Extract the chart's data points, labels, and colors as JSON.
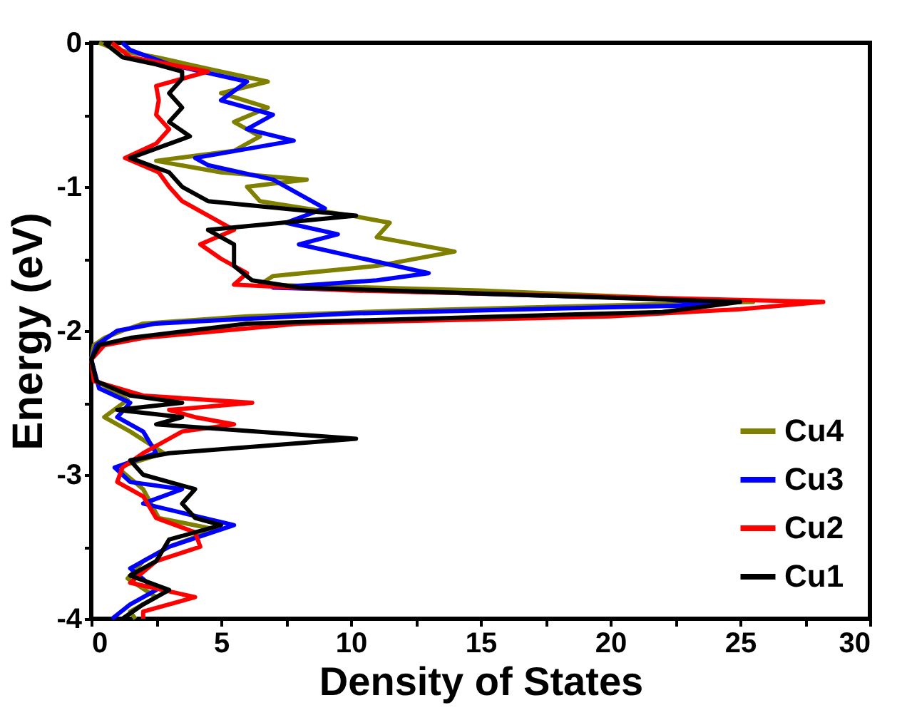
{
  "chart_data": {
    "type": "line",
    "xlabel": "Density of States",
    "ylabel": "Energy (eV)",
    "xlim": [
      0,
      30
    ],
    "ylim": [
      -4,
      0
    ],
    "xticks": [
      0,
      {
        "value": 2.5,
        "label": null
      },
      5,
      {
        "value": 7.5,
        "label": null
      },
      10,
      {
        "value": 12.5,
        "label": null
      },
      15,
      {
        "value": 17.5,
        "label": null
      },
      20,
      {
        "value": 22.5,
        "label": null
      },
      25,
      {
        "value": 27.5,
        "label": null
      },
      30
    ],
    "yticks": [
      -4,
      {
        "value": -3.5,
        "label": null
      },
      -3,
      {
        "value": -2.5,
        "label": null
      },
      -2,
      {
        "value": -1.5,
        "label": null
      },
      -1,
      {
        "value": -0.5,
        "label": null
      },
      0
    ],
    "grid": false,
    "legend": "bottom right",
    "line_style": "solid",
    "marker": "none",
    "series": [
      {
        "name": "Cu4",
        "color": "#808000",
        "x": [
          0.3,
          1.0,
          2.5,
          5.0,
          6.8,
          5.0,
          6.8,
          5.5,
          6.5,
          5.5,
          2.5,
          5.0,
          8.3,
          6.0,
          6.5,
          10.0,
          11.5,
          11.0,
          14.0,
          11.0,
          7.0,
          6.5,
          15.0,
          25.5,
          12.0,
          6.0,
          2.0,
          1.2,
          0.5,
          0.1,
          0.0,
          0.2,
          1.4,
          0.5,
          1.5,
          2.8,
          1.0,
          2.0,
          2.6,
          4.8,
          3.0,
          2.0,
          1.4,
          2.5,
          1.5,
          1.7
        ],
        "values": [
          0,
          -0.05,
          -0.1,
          -0.2,
          -0.27,
          -0.35,
          -0.45,
          -0.55,
          -0.65,
          -0.75,
          -0.82,
          -0.9,
          -0.95,
          -1.0,
          -1.1,
          -1.2,
          -1.25,
          -1.35,
          -1.45,
          -1.55,
          -1.62,
          -1.68,
          -1.72,
          -1.8,
          -1.86,
          -1.9,
          -1.95,
          -2.0,
          -2.05,
          -2.1,
          -2.2,
          -2.35,
          -2.48,
          -2.6,
          -2.7,
          -2.85,
          -2.95,
          -3.1,
          -3.3,
          -3.38,
          -3.5,
          -3.6,
          -3.72,
          -3.85,
          -3.95,
          -4.0
        ]
      },
      {
        "name": "Cu3",
        "color": "#0000ff",
        "x": [
          1.2,
          1.5,
          3.0,
          6.0,
          5.0,
          7.0,
          6.0,
          7.8,
          4.0,
          4.5,
          7.0,
          8.0,
          9.0,
          7.5,
          9.5,
          8.0,
          10.5,
          13.0,
          11.0,
          7.0,
          22.0,
          24.0,
          10.0,
          2.5,
          1.0,
          0.2,
          0.0,
          0.3,
          1.5,
          1.0,
          2.0,
          2.5,
          0.9,
          1.5,
          3.5,
          2.0,
          5.5,
          3.0,
          1.5,
          2.5,
          1.5,
          0.8
        ],
        "values": [
          0,
          -0.05,
          -0.15,
          -0.27,
          -0.4,
          -0.5,
          -0.6,
          -0.68,
          -0.8,
          -0.85,
          -0.95,
          -1.05,
          -1.15,
          -1.25,
          -1.33,
          -1.4,
          -1.5,
          -1.6,
          -1.65,
          -1.7,
          -1.78,
          -1.82,
          -1.88,
          -1.95,
          -2.0,
          -2.1,
          -2.2,
          -2.4,
          -2.5,
          -2.6,
          -2.7,
          -2.85,
          -2.95,
          -3.05,
          -3.1,
          -3.2,
          -3.35,
          -3.5,
          -3.65,
          -3.8,
          -3.9,
          -4.0
        ]
      },
      {
        "name": "Cu2",
        "color": "#ff0000",
        "x": [
          0.8,
          1.5,
          3.0,
          4.5,
          3.5,
          2.5,
          2.6,
          2.5,
          3.0,
          2.5,
          1.3,
          2.6,
          3.0,
          3.5,
          4.5,
          5.5,
          4.2,
          5.0,
          6.0,
          5.5,
          10.0,
          28.2,
          25.0,
          20.0,
          8.0,
          2.0,
          0.5,
          0.0,
          0.1,
          2.0,
          6.2,
          3.0,
          4.0,
          5.5,
          3.5,
          3.0,
          2.0,
          1.2,
          1.0,
          2.0,
          2.5,
          4.0,
          4.2,
          2.5,
          1.5,
          4.0,
          2.0,
          2.0
        ],
        "values": [
          0,
          -0.1,
          -0.15,
          -0.2,
          -0.25,
          -0.3,
          -0.4,
          -0.5,
          -0.6,
          -0.7,
          -0.8,
          -0.9,
          -1.0,
          -1.1,
          -1.2,
          -1.3,
          -1.4,
          -1.5,
          -1.6,
          -1.68,
          -1.72,
          -1.8,
          -1.85,
          -1.9,
          -1.95,
          -2.05,
          -2.1,
          -2.2,
          -2.35,
          -2.45,
          -2.5,
          -2.55,
          -2.6,
          -2.65,
          -2.7,
          -2.75,
          -2.85,
          -2.95,
          -3.05,
          -3.15,
          -3.3,
          -3.4,
          -3.5,
          -3.6,
          -3.75,
          -3.85,
          -3.95,
          -4.0
        ]
      },
      {
        "name": "Cu1",
        "color": "#000000",
        "x": [
          0.5,
          1.2,
          2.5,
          3.5,
          3.5,
          3.0,
          3.5,
          3.0,
          3.8,
          1.5,
          3.0,
          3.5,
          4.5,
          10.2,
          4.5,
          5.5,
          5.5,
          6.2,
          8.0,
          25.0,
          22.0,
          6.0,
          1.5,
          0.3,
          0.0,
          0.2,
          1.5,
          3.5,
          1.0,
          3.5,
          2.5,
          10.2,
          3.0,
          1.5,
          2.0,
          4.0,
          3.5,
          4.0,
          5.0,
          3.0,
          2.5,
          1.5,
          3.0,
          2.0,
          1.2
        ],
        "values": [
          0,
          -0.1,
          -0.15,
          -0.2,
          -0.25,
          -0.35,
          -0.45,
          -0.55,
          -0.65,
          -0.8,
          -0.9,
          -1.0,
          -1.1,
          -1.2,
          -1.3,
          -1.4,
          -1.55,
          -1.65,
          -1.7,
          -1.8,
          -1.87,
          -1.95,
          -2.05,
          -2.1,
          -2.2,
          -2.35,
          -2.45,
          -2.5,
          -2.55,
          -2.6,
          -2.65,
          -2.75,
          -2.85,
          -2.9,
          -3.0,
          -3.1,
          -3.2,
          -3.3,
          -3.35,
          -3.45,
          -3.6,
          -3.7,
          -3.8,
          -3.9,
          -4.0
        ]
      }
    ]
  }
}
